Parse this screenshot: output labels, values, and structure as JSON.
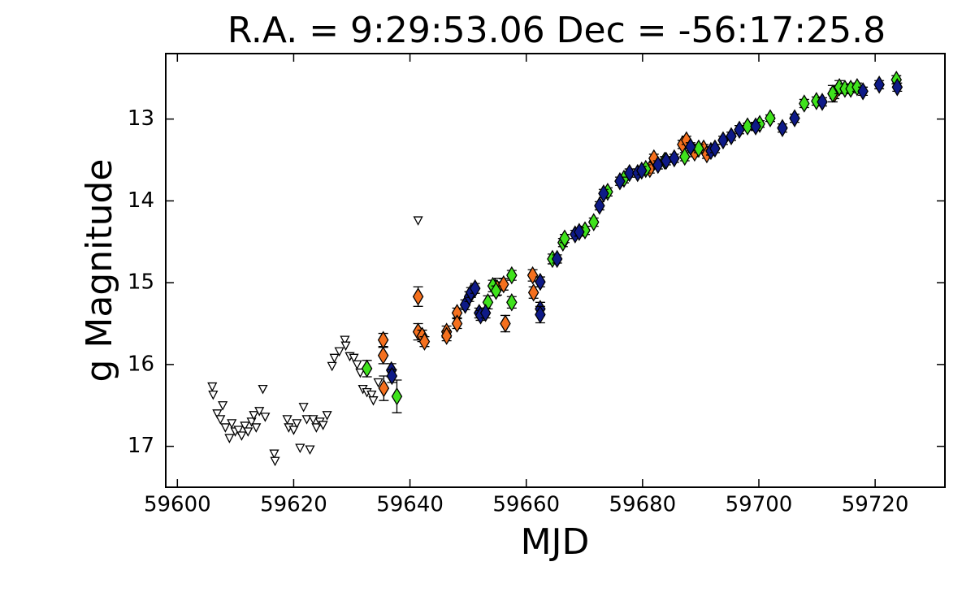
{
  "chart_data": {
    "type": "scatter",
    "title": "R.A. = 9:29:53.06   Dec = -56:17:25.8",
    "x_label": "MJD",
    "y_label": "g Magnitude",
    "xlim": [
      59598,
      59732
    ],
    "xticks": [
      59600,
      59620,
      59640,
      59660,
      59680,
      59700,
      59720
    ],
    "ylim": [
      17.5,
      12.2
    ],
    "yticks": [
      13,
      14,
      15,
      16,
      17
    ],
    "grid": false,
    "series": [
      {
        "color": "#ffffff",
        "marker": "triangle-down",
        "x": [
          59606.0,
          59606.15,
          59606.85,
          59607.4,
          59607.8,
          59608.25,
          59608.95,
          59609.35,
          59609.95,
          59610.5,
          59611.05,
          59611.6,
          59612.15,
          59612.75,
          59613.15,
          59613.55,
          59614.1,
          59614.7,
          59615.1,
          59616.65,
          59616.8,
          59618.9,
          59619.15,
          59620.0,
          59620.55,
          59621.1,
          59621.7,
          59622.25,
          59622.8,
          59623.35,
          59623.9,
          59624.5,
          59625.05,
          59625.75,
          59626.6,
          59627.0,
          59627.85,
          59628.8,
          59628.95,
          59629.65,
          59630.35,
          59630.9,
          59631.45,
          59631.9,
          59632.6,
          59633.4,
          59633.7,
          59634.55,
          59641.4,
          59655.25
        ],
        "values": [
          16.27,
          16.37,
          16.6,
          16.67,
          16.5,
          16.77,
          16.9,
          16.72,
          16.82,
          16.8,
          16.87,
          16.75,
          16.82,
          16.7,
          16.62,
          16.77,
          16.57,
          16.3,
          16.64,
          17.09,
          17.18,
          16.67,
          16.77,
          16.8,
          16.72,
          17.02,
          16.52,
          16.67,
          17.04,
          16.67,
          16.77,
          16.7,
          16.74,
          16.62,
          16.02,
          15.92,
          15.84,
          15.7,
          15.77,
          15.9,
          15.92,
          16.0,
          16.1,
          16.3,
          16.34,
          16.37,
          16.44,
          16.22,
          14.24,
          14.99
        ]
      },
      {
        "color": "#f5701e",
        "marker": "diamond",
        "x": [
          59635.4,
          59635.4,
          59635.5,
          59641.4,
          59641.4,
          59642.1,
          59642.5,
          59646.3,
          59646.3,
          59648.1,
          59648.1,
          59655.0,
          59656.1,
          59656.4,
          59661.1,
          59661.25,
          59681.25,
          59681.95,
          59686.85,
          59687.55,
          59688.95,
          59690.5,
          59691.05,
          59713.0
        ],
        "values": [
          15.7,
          15.89,
          16.29,
          15.17,
          15.6,
          15.65,
          15.72,
          15.6,
          15.65,
          15.37,
          15.5,
          15.07,
          15.02,
          15.5,
          14.91,
          15.12,
          13.61,
          13.48,
          13.31,
          13.26,
          13.41,
          13.36,
          13.43,
          12.69
        ],
        "errors": [
          0.08,
          0.1,
          0.15,
          0.12,
          0.1,
          0.07,
          0.06,
          0.07,
          0.06,
          0.06,
          0.06,
          0.08,
          0.07,
          0.1,
          0.07,
          0.07,
          0.05,
          0.05,
          0.05,
          0.05,
          0.05,
          0.05,
          0.05,
          0.06
        ]
      },
      {
        "color": "#3fe21c",
        "marker": "diamond",
        "x": [
          59632.6,
          59637.75,
          59653.4,
          59654.25,
          59654.8,
          59657.5,
          59657.5,
          59664.5,
          59666.3,
          59666.6,
          59670.1,
          59671.6,
          59674.0,
          59676.8,
          59680.55,
          59683.8,
          59687.25,
          59689.65,
          59698.05,
          59700.15,
          59701.95,
          59707.8,
          59709.9,
          59712.7,
          59713.85,
          59714.8,
          59715.8,
          59716.9,
          59723.65
        ],
        "values": [
          16.05,
          16.39,
          15.24,
          15.04,
          15.1,
          14.91,
          15.24,
          14.71,
          14.51,
          14.46,
          14.36,
          14.26,
          13.89,
          13.73,
          13.61,
          13.51,
          13.46,
          13.36,
          13.09,
          13.06,
          12.99,
          12.81,
          12.78,
          12.69,
          12.61,
          12.63,
          12.63,
          12.61,
          12.52
        ],
        "errors": [
          0.1,
          0.2,
          0.08,
          0.07,
          0.06,
          0.06,
          0.07,
          0.06,
          0.05,
          0.05,
          0.05,
          0.05,
          0.05,
          0.05,
          0.05,
          0.05,
          0.05,
          0.05,
          0.04,
          0.04,
          0.04,
          0.05,
          0.05,
          0.1,
          0.08,
          0.06,
          0.05,
          0.05,
          0.05
        ]
      },
      {
        "color": "#0e1a87",
        "marker": "diamond",
        "x": [
          59636.8,
          59636.9,
          59649.5,
          59650.2,
          59650.5,
          59651.2,
          59651.9,
          59652.15,
          59653.0,
          59662.4,
          59662.4,
          59662.4,
          59665.3,
          59668.4,
          59669.1,
          59672.6,
          59673.3,
          59676.1,
          59677.75,
          59679.15,
          59679.85,
          59682.65,
          59684.05,
          59685.45,
          59688.25,
          59691.75,
          59692.45,
          59693.85,
          59695.25,
          59696.65,
          59699.45,
          59704.05,
          59706.15,
          59710.9,
          59717.9,
          59720.7,
          59723.8
        ],
        "values": [
          16.07,
          16.14,
          15.27,
          15.17,
          15.12,
          15.07,
          15.37,
          15.4,
          15.37,
          14.99,
          15.32,
          15.39,
          14.71,
          14.41,
          14.38,
          14.06,
          13.91,
          13.76,
          13.66,
          13.66,
          13.63,
          13.56,
          13.51,
          13.48,
          13.34,
          13.39,
          13.36,
          13.26,
          13.21,
          13.13,
          13.09,
          13.11,
          12.99,
          12.79,
          12.66,
          12.58,
          12.61
        ],
        "errors": [
          0.08,
          0.08,
          0.06,
          0.06,
          0.06,
          0.06,
          0.06,
          0.06,
          0.06,
          0.06,
          0.08,
          0.1,
          0.05,
          0.05,
          0.05,
          0.05,
          0.05,
          0.05,
          0.05,
          0.05,
          0.05,
          0.05,
          0.05,
          0.05,
          0.05,
          0.05,
          0.05,
          0.05,
          0.05,
          0.05,
          0.05,
          0.05,
          0.05,
          0.05,
          0.05,
          0.05,
          0.05
        ]
      }
    ]
  }
}
